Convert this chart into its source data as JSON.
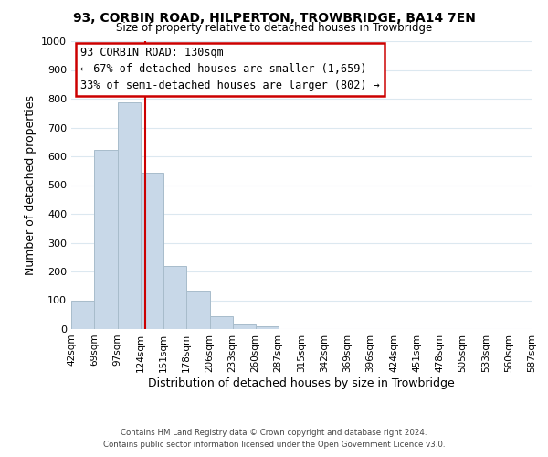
{
  "title": "93, CORBIN ROAD, HILPERTON, TROWBRIDGE, BA14 7EN",
  "subtitle": "Size of property relative to detached houses in Trowbridge",
  "xlabel": "Distribution of detached houses by size in Trowbridge",
  "ylabel": "Number of detached properties",
  "footer_line1": "Contains HM Land Registry data © Crown copyright and database right 2024.",
  "footer_line2": "Contains public sector information licensed under the Open Government Licence v3.0.",
  "bin_edges": [
    42,
    69,
    97,
    124,
    151,
    178,
    206,
    233,
    260,
    287,
    315,
    342,
    369,
    396,
    424,
    451,
    478,
    505,
    533,
    560,
    587
  ],
  "bar_heights": [
    100,
    622,
    787,
    542,
    220,
    133,
    43,
    17,
    10,
    0,
    0,
    0,
    0,
    0,
    0,
    0,
    0,
    0,
    0,
    0
  ],
  "bar_color": "#c8d8e8",
  "bar_edgecolor": "#a8bccb",
  "vline_x": 130,
  "vline_color": "#cc0000",
  "ylim": [
    0,
    1000
  ],
  "yticks": [
    0,
    100,
    200,
    300,
    400,
    500,
    600,
    700,
    800,
    900,
    1000
  ],
  "annotation_title": "93 CORBIN ROAD: 130sqm",
  "annotation_line1": "← 67% of detached houses are smaller (1,659)",
  "annotation_line2": "33% of semi-detached houses are larger (802) →",
  "annotation_box_color": "#ffffff",
  "annotation_box_edgecolor": "#cc0000",
  "bg_color": "#ffffff",
  "grid_color": "#dce8f0"
}
